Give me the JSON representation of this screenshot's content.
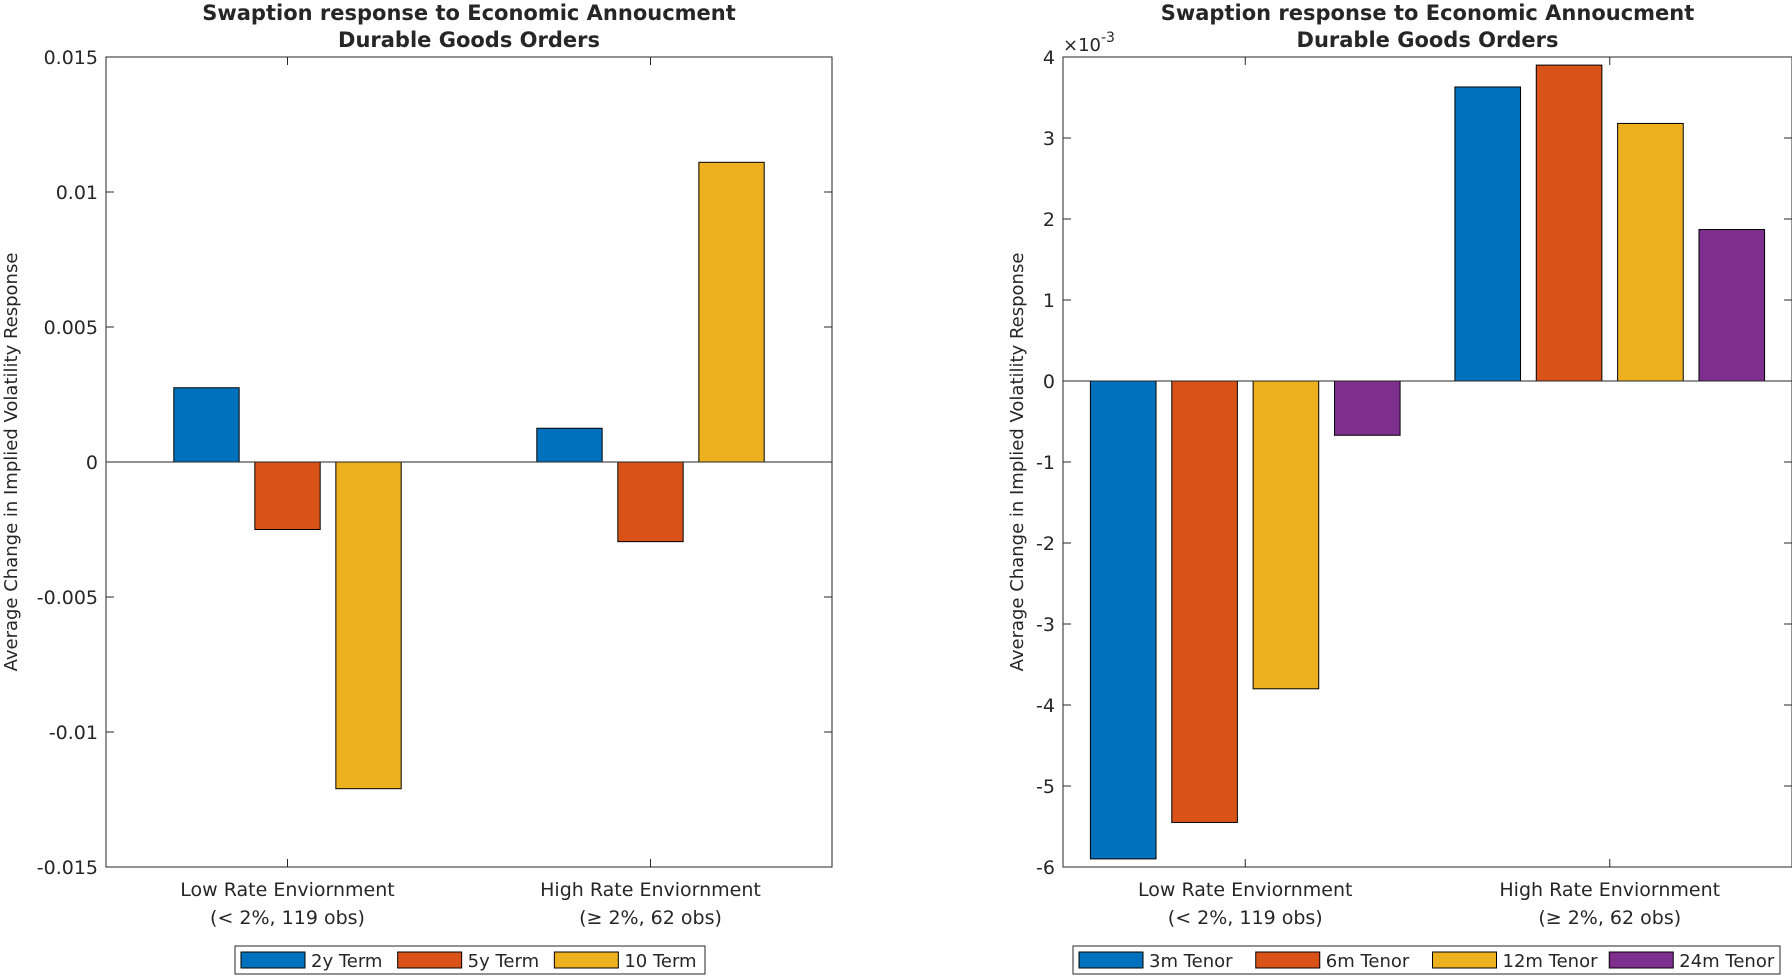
{
  "chart_data": [
    {
      "type": "bar",
      "title": "Swaption response to Economic Annoucment",
      "subtitle": "Durable Goods Orders",
      "ylabel": "Average Change in Implied Volatility Response",
      "xlabel": "",
      "ylim": [
        -0.015,
        0.015
      ],
      "yticks": [
        {
          "value": -0.015,
          "label": "-0.015"
        },
        {
          "value": -0.01,
          "label": "-0.01"
        },
        {
          "value": -0.005,
          "label": "-0.005"
        },
        {
          "value": 0,
          "label": "0"
        },
        {
          "value": 0.005,
          "label": "0.005"
        },
        {
          "value": 0.01,
          "label": "0.01"
        },
        {
          "value": 0.015,
          "label": "0.015"
        }
      ],
      "categories": [
        {
          "line1": "Low Rate Enviornment",
          "line2": "(< 2%, 119 obs)"
        },
        {
          "line1": "High Rate Enviornment",
          "line2": "(≥ 2%, 62 obs)"
        }
      ],
      "series": [
        {
          "name": "2y Term",
          "color": "#0072BD",
          "values": [
            0.00275,
            0.00125
          ]
        },
        {
          "name": "5y Term",
          "color": "#D95319",
          "values": [
            -0.0025,
            -0.00295
          ]
        },
        {
          "name": "10 Term",
          "color": "#EDB120",
          "values": [
            -0.0121,
            0.0111
          ]
        }
      ],
      "legend": "bottom",
      "grid": false
    },
    {
      "type": "bar",
      "title": "Swaption response to Economic Annoucment",
      "subtitle": "Durable Goods Orders",
      "ylabel": "Average Change in Implied Volatility Response",
      "xlabel": "",
      "ylim": [
        -0.006,
        0.004
      ],
      "exponent_label": "×10",
      "exponent_power": "-3",
      "yticks": [
        {
          "value": -0.006,
          "label": "-6"
        },
        {
          "value": -0.005,
          "label": "-5"
        },
        {
          "value": -0.004,
          "label": "-4"
        },
        {
          "value": -0.003,
          "label": "-3"
        },
        {
          "value": -0.002,
          "label": "-2"
        },
        {
          "value": -0.001,
          "label": "-1"
        },
        {
          "value": 0,
          "label": "0"
        },
        {
          "value": 0.001,
          "label": "1"
        },
        {
          "value": 0.002,
          "label": "2"
        },
        {
          "value": 0.003,
          "label": "3"
        },
        {
          "value": 0.004,
          "label": "4"
        }
      ],
      "categories": [
        {
          "line1": "Low Rate Enviornment",
          "line2": "(< 2%, 119 obs)"
        },
        {
          "line1": "High Rate Enviornment",
          "line2": "(≥ 2%, 62 obs)"
        }
      ],
      "series": [
        {
          "name": "3m Tenor",
          "color": "#0072BD",
          "values": [
            -0.0059,
            0.00363
          ]
        },
        {
          "name": "6m Tenor",
          "color": "#D95319",
          "values": [
            -0.00545,
            0.0039
          ]
        },
        {
          "name": "12m Tenor",
          "color": "#EDB120",
          "values": [
            -0.0038,
            0.00318
          ]
        },
        {
          "name": "24m Tenor",
          "color": "#7E2F8E",
          "values": [
            -0.00067,
            0.00187
          ]
        }
      ],
      "legend": "bottom",
      "grid": false
    }
  ]
}
